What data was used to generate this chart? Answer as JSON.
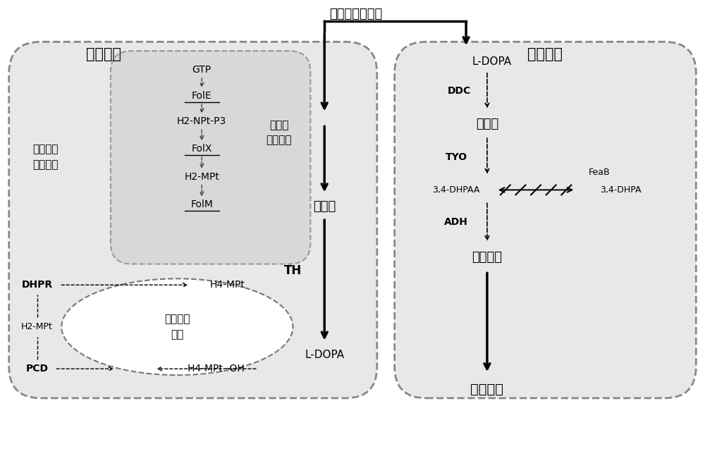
{
  "bg_color": "#ffffff",
  "fig_width": 10.0,
  "fig_height": 6.37,
  "top_strain_label": "顶部菌株",
  "bottom_strain_label": "底部菌株",
  "input_label": "酪氨酸或葡萄糖",
  "cofactor_biosynthesis_label": "辅助因子\n生物合成",
  "tyrosine_biosynthesis_label": "酪氨酸\n生物合成",
  "cofactor_regen_label": "辅助因子\n再生",
  "tyrosine_label": "酪氨酸",
  "dopamine_label": "多巴胺",
  "hydroxytyrosol_label": "羟基酪醇",
  "hydroxytyrosol_bottom_label": "羟基酪醇",
  "inner_compounds": [
    "GTP",
    "FolE",
    "H2-NPt-P3",
    "FolX",
    "H2-MPt",
    "FolM"
  ],
  "inner_underlined": [
    "FolE",
    "FolX",
    "FolM"
  ],
  "inner_bold": [
    "DHPR",
    "PCD",
    "TYO",
    "ADH",
    "DDC"
  ],
  "th_label": "TH",
  "ldopa_label": "L-DOPA",
  "ddc_label": "DDC",
  "tyo_label": "TYO",
  "dhpaa_label": "3,4-DHPAA",
  "feab_label": "FeaB",
  "dhpa_label": "3,4-DHPA",
  "adh_label": "ADH",
  "dhpr_label": "DHPR",
  "h2mpt_label": "H2-MPt",
  "pcd_label": "PCD",
  "h4mpt_label": "H4-MPt",
  "h4mpt_oh_label": "H4-MPt -OH"
}
